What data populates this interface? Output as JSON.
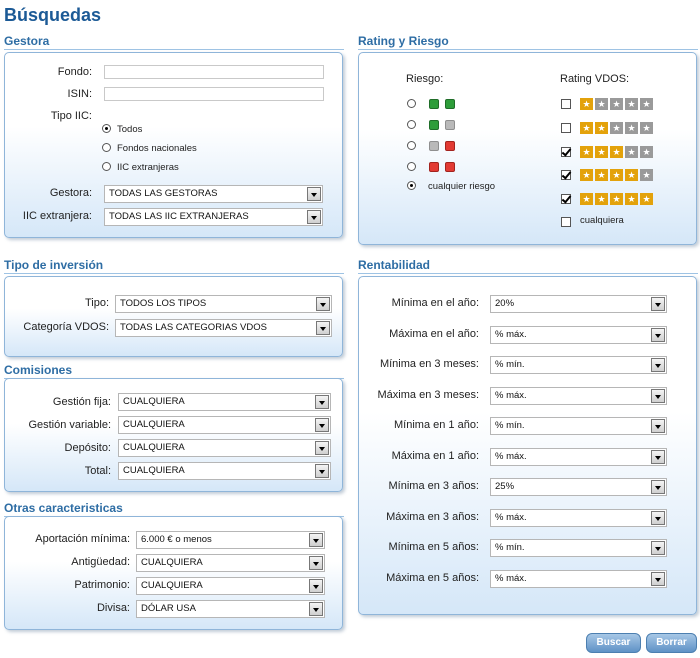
{
  "page": {
    "title": "Búsquedas"
  },
  "gestora": {
    "title": "Gestora",
    "fondo_label": "Fondo:",
    "fondo_value": "",
    "isin_label": "ISIN:",
    "isin_value": "",
    "tipo_iic_label": "Tipo IIC:",
    "tipo_iic_options": [
      "Todos",
      "Fondos nacionales",
      "IIC extranjeras"
    ],
    "tipo_iic_selected": "Todos",
    "gestora_label": "Gestora:",
    "gestora_value": "TODAS LAS GESTORAS",
    "iic_label": "IIC extranjera:",
    "iic_value": "TODAS LAS IIC EXTRANJERAS"
  },
  "rating": {
    "title": "Rating y Riesgo",
    "riesgo_label": "Riesgo:",
    "riesgo_options": [
      {
        "colors": [
          "green",
          "green"
        ],
        "label": ""
      },
      {
        "colors": [
          "green",
          "grey"
        ],
        "label": ""
      },
      {
        "colors": [
          "grey",
          "red"
        ],
        "label": ""
      },
      {
        "colors": [
          "red",
          "red"
        ],
        "label": ""
      },
      {
        "colors": [],
        "label": "cualquier riesgo"
      }
    ],
    "riesgo_selected_index": 4,
    "rating_label": "Rating VDOS:",
    "rating_options": [
      {
        "stars": 1,
        "checked": false,
        "label": ""
      },
      {
        "stars": 2,
        "checked": false,
        "label": ""
      },
      {
        "stars": 3,
        "checked": true,
        "label": ""
      },
      {
        "stars": 4,
        "checked": true,
        "label": ""
      },
      {
        "stars": 5,
        "checked": true,
        "label": ""
      },
      {
        "stars": 0,
        "checked": false,
        "label": "cualquiera"
      }
    ]
  },
  "tipo_inversion": {
    "title": "Tipo de inversión",
    "tipo_label": "Tipo:",
    "tipo_value": "TODOS LOS TIPOS",
    "categoria_label": "Categoría VDOS:",
    "categoria_value": "TODAS LAS CATEGORIAS VDOS"
  },
  "comisiones": {
    "title": "Comisiones",
    "rows": [
      {
        "label": "Gestión fija:",
        "value": "CUALQUIERA"
      },
      {
        "label": "Gestión variable:",
        "value": "CUALQUIERA"
      },
      {
        "label": "Depósito:",
        "value": "CUALQUIERA"
      },
      {
        "label": "Total:",
        "value": "CUALQUIERA"
      }
    ]
  },
  "otras": {
    "title": "Otras caracteristicas",
    "rows": [
      {
        "label": "Aportación mínima:",
        "value": "6.000 € o menos"
      },
      {
        "label": "Antigüedad:",
        "value": "CUALQUIERA"
      },
      {
        "label": "Patrimonio:",
        "value": "CUALQUIERA"
      },
      {
        "label": "Divisa:",
        "value": "DÓLAR USA"
      }
    ]
  },
  "rentabilidad": {
    "title": "Rentabilidad",
    "rows": [
      {
        "label": "Mínima en el año:",
        "value": "20%"
      },
      {
        "label": "Máxima en el año:",
        "value": "% máx."
      },
      {
        "label": "Mínima en 3 meses:",
        "value": "% mín."
      },
      {
        "label": "Máxima en 3 meses:",
        "value": "% máx."
      },
      {
        "label": "Mínima en 1 año:",
        "value": "% mín."
      },
      {
        "label": "Máxima en 1 año:",
        "value": "% máx."
      },
      {
        "label": "Mínima en 3 años:",
        "value": "25%"
      },
      {
        "label": "Máxima en 3 años:",
        "value": "% máx."
      },
      {
        "label": "Mínima en 5 años:",
        "value": "% mín."
      },
      {
        "label": "Máxima en 5 años:",
        "value": "% máx."
      }
    ]
  },
  "actions": {
    "buscar": "Buscar",
    "borrar": "Borrar"
  },
  "colors": {
    "accent": "#2e6da4",
    "title": "#1c5a96",
    "star_on": "#e3a20b",
    "star_off": "#9a9a9a"
  }
}
